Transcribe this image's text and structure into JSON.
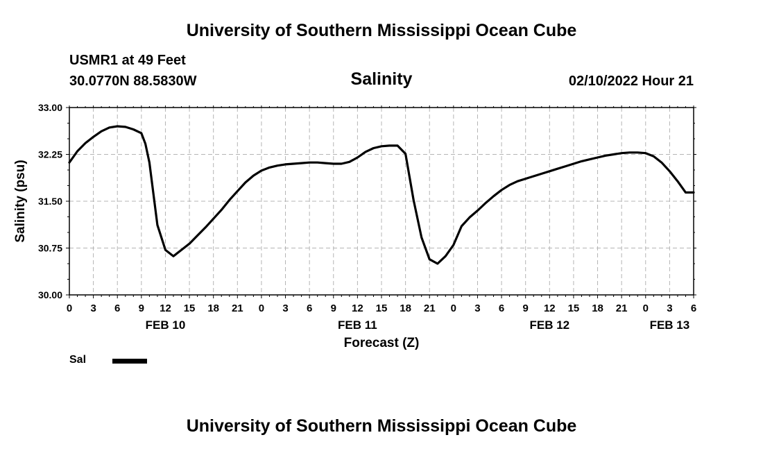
{
  "header": {
    "title": "University of Southern Mississippi Ocean Cube",
    "station": "USMR1 at 49 Feet",
    "coords": "30.0770N  88.5830W",
    "variable": "Salinity",
    "run_time": "02/10/2022 Hour 21"
  },
  "footer": {
    "title": "University of Southern Mississippi Ocean Cube"
  },
  "legend": {
    "label": "Sal",
    "color": "#000000"
  },
  "chart_data": {
    "type": "line",
    "title": "Salinity",
    "xlabel": "Forecast (Z)",
    "ylabel": "Salinity (psu)",
    "xlim": [
      0,
      78
    ],
    "ylim": [
      30.0,
      33.0
    ],
    "grid": true,
    "legend_position": "bottom-left",
    "y_ticks": [
      "30.00",
      "30.75",
      "31.50",
      "32.25",
      "33.00"
    ],
    "x_ticks": [
      "0",
      "3",
      "6",
      "9",
      "12",
      "15",
      "18",
      "21",
      "0",
      "3",
      "6",
      "9",
      "12",
      "15",
      "18",
      "21",
      "0",
      "3",
      "6",
      "9",
      "12",
      "15",
      "18",
      "21",
      "0",
      "3",
      "6"
    ],
    "date_labels": [
      {
        "hour": 12,
        "text": "FEB 10"
      },
      {
        "hour": 36,
        "text": "FEB 11"
      },
      {
        "hour": 60,
        "text": "FEB 12"
      },
      {
        "hour": 75,
        "text": "FEB 13"
      }
    ],
    "series": [
      {
        "name": "Sal",
        "x": [
          0,
          1,
          2,
          3,
          4,
          5,
          6,
          7,
          8,
          9,
          9.5,
          10,
          11,
          12,
          13,
          14,
          15,
          16,
          17,
          18,
          19,
          20,
          21,
          22,
          23,
          24,
          25,
          26,
          27,
          28,
          29,
          30,
          31,
          32,
          33,
          34,
          35,
          36,
          37,
          38,
          39,
          40,
          41,
          42,
          43,
          44,
          45,
          46,
          47,
          48,
          48.5,
          49,
          50,
          51,
          52,
          53,
          54,
          55,
          56,
          57,
          58,
          59,
          60,
          61,
          62,
          63,
          64,
          65,
          66,
          67,
          68,
          69,
          70,
          71,
          72,
          73,
          74,
          75,
          76,
          77,
          78
        ],
        "values": [
          32.12,
          32.3,
          32.43,
          32.53,
          32.62,
          32.68,
          32.7,
          32.69,
          32.65,
          32.59,
          32.42,
          32.12,
          31.12,
          30.72,
          30.62,
          30.72,
          30.82,
          30.95,
          31.08,
          31.22,
          31.36,
          31.52,
          31.66,
          31.8,
          31.91,
          31.99,
          32.04,
          32.07,
          32.09,
          32.1,
          32.11,
          32.12,
          32.12,
          32.11,
          32.1,
          32.1,
          32.13,
          32.2,
          32.29,
          32.35,
          32.38,
          32.39,
          32.39,
          32.26,
          31.52,
          30.92,
          30.57,
          30.5,
          30.62,
          30.8,
          30.95,
          31.1,
          31.24,
          31.35,
          31.47,
          31.58,
          31.68,
          31.76,
          31.82,
          31.86,
          31.9,
          31.94,
          31.98,
          32.02,
          32.06,
          32.1,
          32.14,
          32.17,
          32.2,
          32.23,
          32.25,
          32.27,
          32.28,
          32.28,
          32.27,
          32.22,
          32.12,
          31.98,
          31.82,
          31.64,
          31.64
        ]
      }
    ]
  }
}
